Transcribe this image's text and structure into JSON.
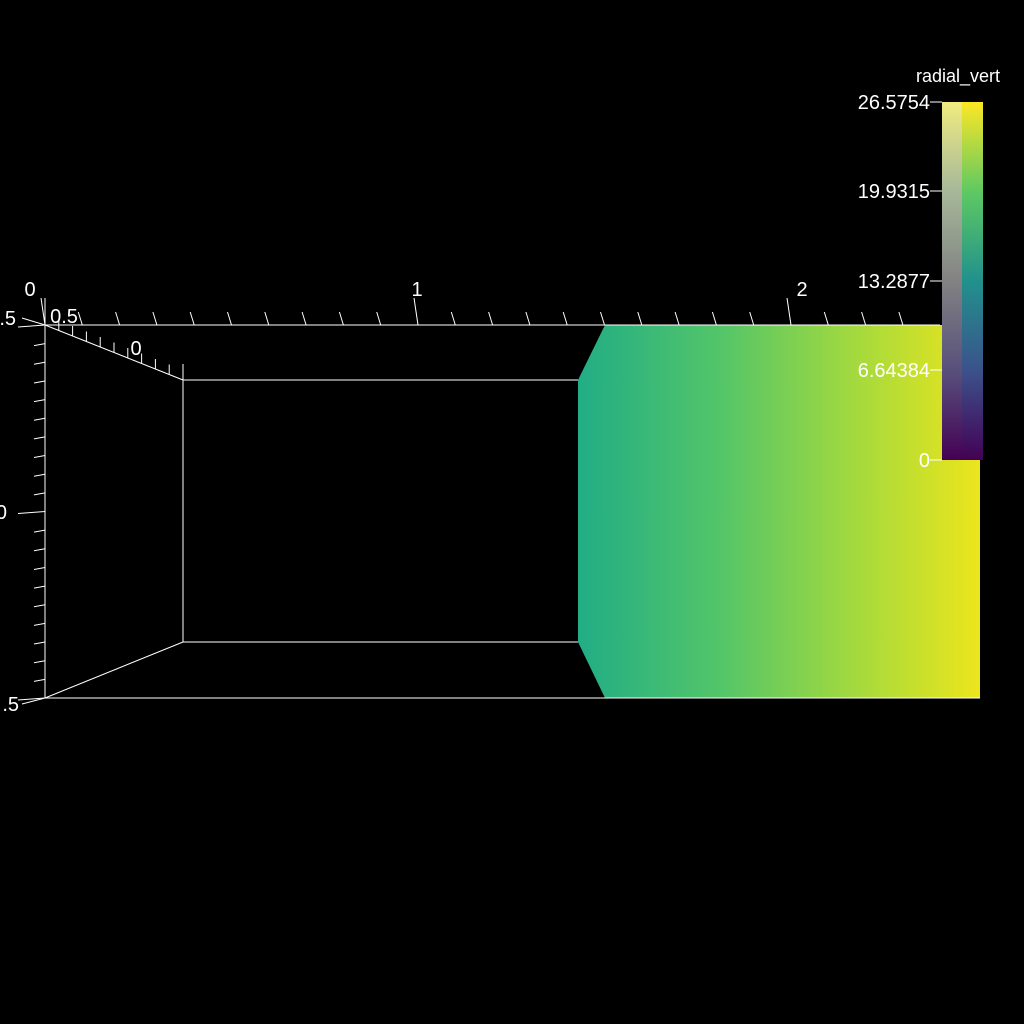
{
  "scene": {
    "background": "#000000",
    "line_color": "#ffffff"
  },
  "axes": {
    "x_labels": [
      "0",
      "1",
      "2"
    ],
    "depth_labels": [
      "0.5",
      "0"
    ],
    "y_labels_clipped": [
      ".5",
      "0",
      ".5"
    ]
  },
  "scalar_bar": {
    "title": "radial_vert",
    "labels": [
      "26.5754",
      "19.9315",
      "13.2877",
      "6.64384",
      "0"
    ],
    "range": [
      0,
      26.5754
    ],
    "colormap": "viridis",
    "colors": {
      "low": "#440154",
      "q1": "#3b528b",
      "mid": "#21918c",
      "q3": "#5ec962",
      "high": "#fde725"
    }
  },
  "surface": {
    "field": "radial_vert",
    "colors": {
      "left": "#22ad85",
      "right": "#ece51c"
    }
  }
}
